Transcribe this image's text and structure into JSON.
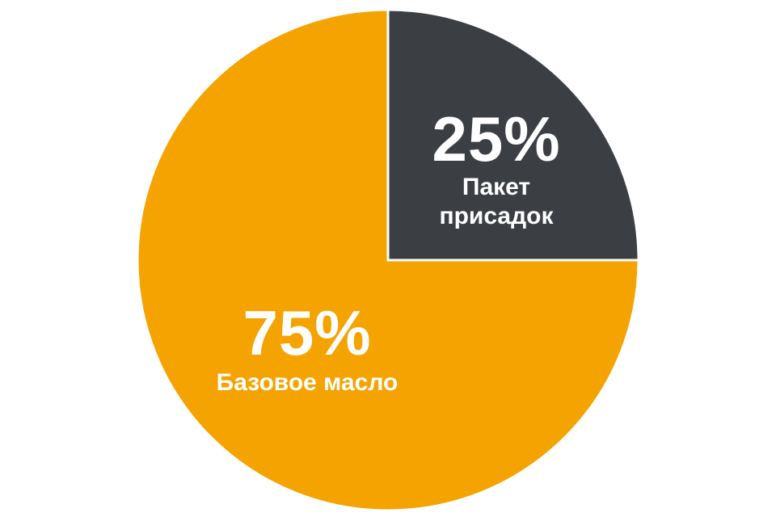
{
  "chart_data": {
    "type": "pie",
    "start_angle": "top",
    "direction": "clockwise",
    "categories": [
      "Пакет присадок",
      "Базовое масло"
    ],
    "values": [
      25,
      75
    ],
    "value_labels": [
      "25%",
      "75%"
    ],
    "colors": [
      "#3b3f44",
      "#f4a300"
    ]
  }
}
